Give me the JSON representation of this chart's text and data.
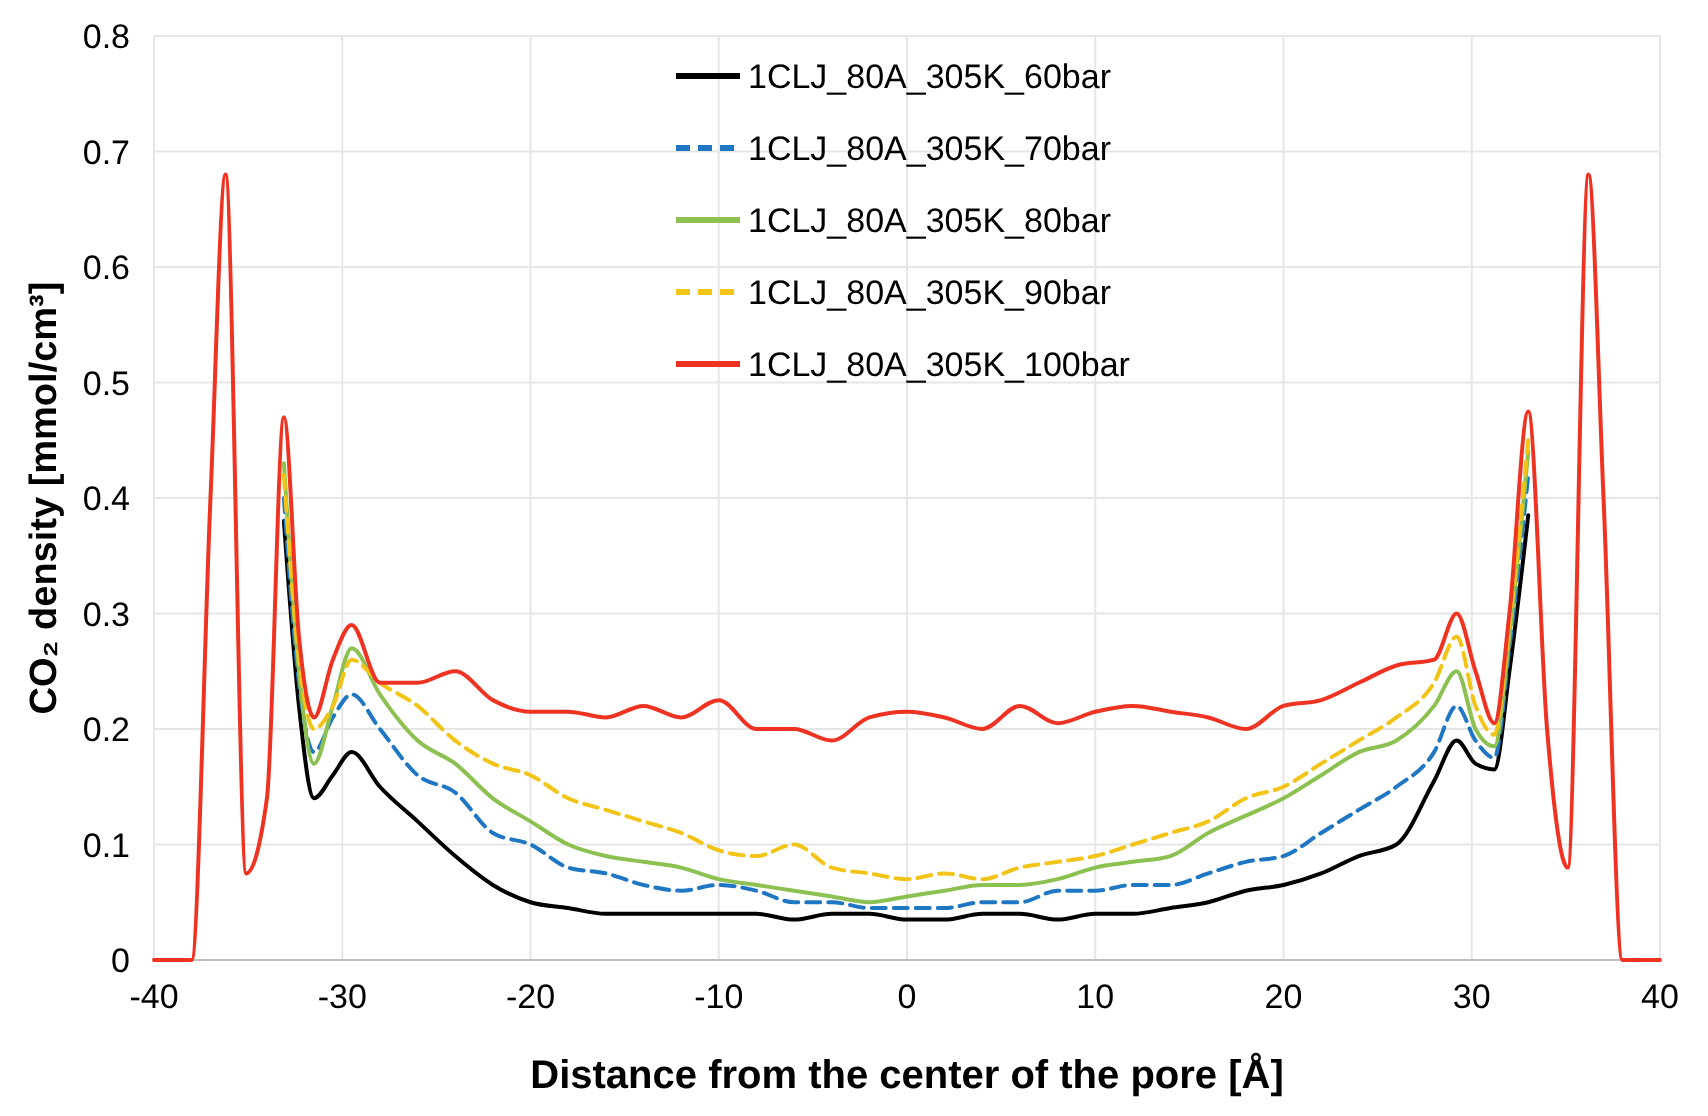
{
  "chart_data": {
    "type": "line",
    "xlabel": "Distance from the center of the pore [Å]",
    "ylabel": "CO₂ density [mmol/cm³]",
    "x": [
      -33.1,
      -32.3,
      -31.5,
      -30.5,
      -29.5,
      -28,
      -26,
      -24,
      -22,
      -20,
      -18,
      -16,
      -14,
      -12,
      -10,
      -8,
      -6,
      -4,
      -2,
      0,
      2,
      4,
      6,
      8,
      10,
      12,
      14,
      16,
      18,
      20,
      22,
      24,
      26,
      28,
      29.2,
      30.2,
      31.2,
      32,
      33
    ],
    "xlim": [
      -40,
      40
    ],
    "xticks": [
      -40,
      -30,
      -20,
      -10,
      0,
      10,
      20,
      30,
      40
    ],
    "ylim": [
      0,
      0.8
    ],
    "yticks": [
      0,
      0.1,
      0.2,
      0.3,
      0.4,
      0.5,
      0.6,
      0.7,
      0.8
    ],
    "grid": true,
    "legend": "top",
    "marker": "none",
    "series": [
      {
        "name": "1CLJ_80A_305K_60bar",
        "color": "#000000",
        "line_style": "solid",
        "values": [
          0.38,
          0.22,
          0.14,
          0.16,
          0.18,
          0.15,
          0.12,
          0.09,
          0.065,
          0.05,
          0.045,
          0.04,
          0.04,
          0.04,
          0.04,
          0.04,
          0.035,
          0.04,
          0.04,
          0.035,
          0.035,
          0.04,
          0.04,
          0.035,
          0.04,
          0.04,
          0.045,
          0.05,
          0.06,
          0.065,
          0.075,
          0.09,
          0.1,
          0.155,
          0.19,
          0.17,
          0.165,
          0.25,
          0.385
        ]
      },
      {
        "name": "1CLJ_80A_305K_70bar",
        "color": "#1f77c4",
        "line_style": "dashed",
        "values": [
          0.4,
          0.24,
          0.18,
          0.21,
          0.23,
          0.2,
          0.16,
          0.145,
          0.11,
          0.1,
          0.08,
          0.075,
          0.065,
          0.06,
          0.065,
          0.06,
          0.05,
          0.05,
          0.045,
          0.045,
          0.045,
          0.05,
          0.05,
          0.06,
          0.06,
          0.065,
          0.065,
          0.075,
          0.085,
          0.09,
          0.11,
          0.13,
          0.15,
          0.18,
          0.22,
          0.19,
          0.175,
          0.27,
          0.42
        ]
      },
      {
        "name": "1CLJ_80A_305K_80bar",
        "color": "#8cc152",
        "line_style": "solid",
        "values": [
          0.43,
          0.25,
          0.17,
          0.22,
          0.27,
          0.23,
          0.19,
          0.17,
          0.14,
          0.12,
          0.1,
          0.09,
          0.085,
          0.08,
          0.07,
          0.065,
          0.06,
          0.055,
          0.05,
          0.055,
          0.06,
          0.065,
          0.065,
          0.07,
          0.08,
          0.085,
          0.09,
          0.11,
          0.125,
          0.14,
          0.16,
          0.18,
          0.19,
          0.22,
          0.25,
          0.2,
          0.185,
          0.28,
          0.44
        ]
      },
      {
        "name": "1CLJ_80A_305K_90bar",
        "color": "#f2c418",
        "line_style": "dashed",
        "values": [
          0.42,
          0.26,
          0.2,
          0.22,
          0.26,
          0.24,
          0.22,
          0.19,
          0.17,
          0.16,
          0.14,
          0.13,
          0.12,
          0.11,
          0.095,
          0.09,
          0.1,
          0.08,
          0.075,
          0.07,
          0.075,
          0.07,
          0.08,
          0.085,
          0.09,
          0.1,
          0.11,
          0.12,
          0.14,
          0.15,
          0.17,
          0.19,
          0.21,
          0.24,
          0.28,
          0.22,
          0.195,
          0.29,
          0.45
        ]
      },
      {
        "name": "1CLJ_80A_305K_100bar",
        "color": "#ee3322",
        "line_style": "solid",
        "x": [
          -40,
          -38,
          -37,
          -36.2,
          -35.1,
          -34,
          -33.1,
          -32.3,
          -31.5,
          -30.5,
          -29.5,
          -28,
          -26,
          -24,
          -22,
          -20,
          -18,
          -16,
          -14,
          -12,
          -10,
          -8,
          -6,
          -4,
          -2,
          0,
          2,
          4,
          6,
          8,
          10,
          12,
          14,
          16,
          18,
          20,
          22,
          24,
          26,
          28,
          29.2,
          30.2,
          31.2,
          32,
          33,
          34,
          35.1,
          36.2,
          37,
          38,
          40
        ],
        "values": [
          0,
          0,
          0.4,
          0.68,
          0.075,
          0.14,
          0.47,
          0.28,
          0.21,
          0.26,
          0.29,
          0.24,
          0.24,
          0.25,
          0.225,
          0.215,
          0.215,
          0.21,
          0.22,
          0.21,
          0.225,
          0.2,
          0.2,
          0.19,
          0.21,
          0.215,
          0.21,
          0.2,
          0.22,
          0.205,
          0.215,
          0.22,
          0.215,
          0.21,
          0.2,
          0.22,
          0.225,
          0.24,
          0.255,
          0.26,
          0.3,
          0.25,
          0.205,
          0.3,
          0.475,
          0.2,
          0.08,
          0.68,
          0.4,
          0,
          0
        ]
      }
    ]
  }
}
